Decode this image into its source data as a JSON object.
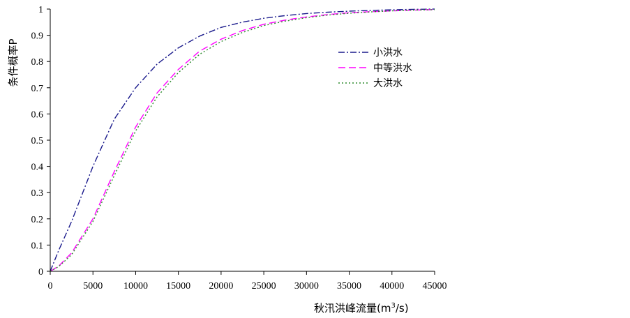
{
  "chart_data": {
    "type": "line",
    "title": "",
    "xlabel": "秋汛洪峰流量(m",
    "xlabel_sup": "3",
    "xlabel_tail": "/s)",
    "ylabel": "条件概率P",
    "xlim": [
      0,
      45000
    ],
    "ylim": [
      0,
      1
    ],
    "x_ticks": [
      "0",
      "5000",
      "10000",
      "15000",
      "20000",
      "25000",
      "30000",
      "35000",
      "40000",
      "45000"
    ],
    "y_ticks": [
      "0",
      "0.1",
      "0.2",
      "0.3",
      "0.4",
      "0.5",
      "0.6",
      "0.7",
      "0.8",
      "0.9",
      "1"
    ],
    "grid": false,
    "legend": "top-right",
    "x": [
      0,
      1000,
      2500,
      5000,
      7500,
      10000,
      12500,
      15000,
      17500,
      20000,
      22500,
      25000,
      27500,
      30000,
      32500,
      35000,
      37500,
      40000,
      42500,
      45000
    ],
    "series": [
      {
        "name": "小洪水",
        "color": "#1a1a8c",
        "dash": "9,3,2,3",
        "values": [
          0,
          0.08,
          0.19,
          0.4,
          0.58,
          0.7,
          0.79,
          0.852,
          0.897,
          0.93,
          0.95,
          0.965,
          0.975,
          0.983,
          0.988,
          0.992,
          0.995,
          0.997,
          0.999,
          1.0
        ]
      },
      {
        "name": "中等洪水",
        "color": "#ff00ff",
        "dash": "10,5",
        "values": [
          0,
          0.02,
          0.07,
          0.2,
          0.38,
          0.55,
          0.68,
          0.77,
          0.84,
          0.885,
          0.918,
          0.942,
          0.958,
          0.97,
          0.979,
          0.986,
          0.99,
          0.993,
          0.996,
          0.998
        ]
      },
      {
        "name": "大洪水",
        "color": "#2e8b2e",
        "dash": "2,3",
        "values": [
          0,
          0.018,
          0.063,
          0.19,
          0.365,
          0.535,
          0.665,
          0.758,
          0.828,
          0.876,
          0.911,
          0.937,
          0.954,
          0.967,
          0.977,
          0.984,
          0.989,
          0.993,
          0.996,
          0.998
        ]
      }
    ]
  }
}
